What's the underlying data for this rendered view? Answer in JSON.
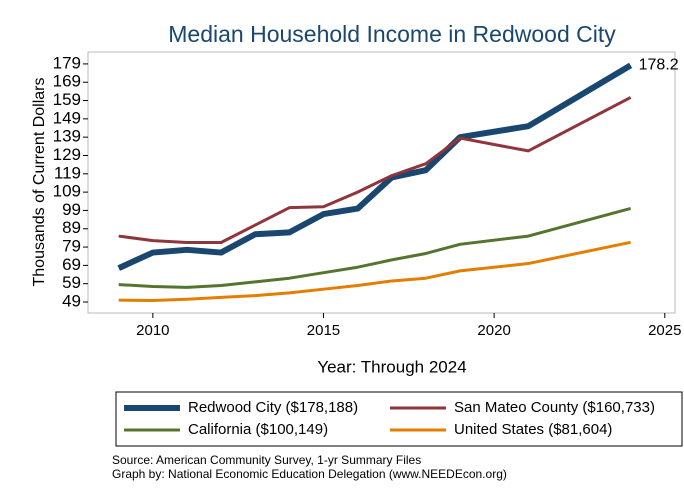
{
  "chart_data": {
    "type": "line",
    "title": "Median Household Income in Redwood City",
    "xlabel": "Year: Through 2024",
    "ylabel": "Thousands of Current Dollars",
    "x": [
      2009,
      2010,
      2011,
      2012,
      2013,
      2014,
      2015,
      2016,
      2017,
      2018,
      2019,
      2021,
      2024
    ],
    "series": [
      {
        "name": "Redwood City ($178,188)",
        "color": "#1a476f",
        "width": 6,
        "values": [
          67.5,
          76,
          77.5,
          76,
          86,
          87,
          97,
          100,
          117,
          121,
          139,
          145,
          178.2
        ],
        "value_labels": [
          null,
          null,
          null,
          null,
          null,
          null,
          null,
          null,
          null,
          null,
          null,
          null,
          "178.2"
        ]
      },
      {
        "name": "San Mateo County ($160,733)",
        "color": "#90353b",
        "width": 3,
        "values": [
          85,
          82.5,
          81.5,
          81.5,
          91,
          100.5,
          101,
          109,
          118,
          124.5,
          138.5,
          131.5,
          160.7
        ]
      },
      {
        "name": "California ($100,149)",
        "color": "#55752f",
        "width": 3,
        "values": [
          58.5,
          57.5,
          57,
          58,
          60,
          62,
          65,
          68,
          72,
          75.5,
          80.5,
          85,
          100.1
        ]
      },
      {
        "name": "United States ($81,604)",
        "color": "#e37e00",
        "width": 3,
        "values": [
          50,
          49.8,
          50.5,
          51.5,
          52.5,
          54,
          56,
          58,
          60.5,
          62,
          66,
          70,
          81.6
        ]
      }
    ],
    "xlim": [
      2008.1,
      2025.3
    ],
    "ylim": [
      43,
      185.5
    ],
    "xticks": [
      2010,
      2015,
      2020,
      2025
    ],
    "yticks": [
      49,
      59,
      69,
      79,
      89,
      99,
      109,
      119,
      129,
      139,
      149,
      159,
      169,
      179
    ],
    "grid": false,
    "legend_position": "bottom",
    "notes": [
      "Source: American Community Survey, 1-yr Summary Files",
      "Graph by: National Economic Education Delegation (www.NEEDEcon.org)"
    ]
  }
}
